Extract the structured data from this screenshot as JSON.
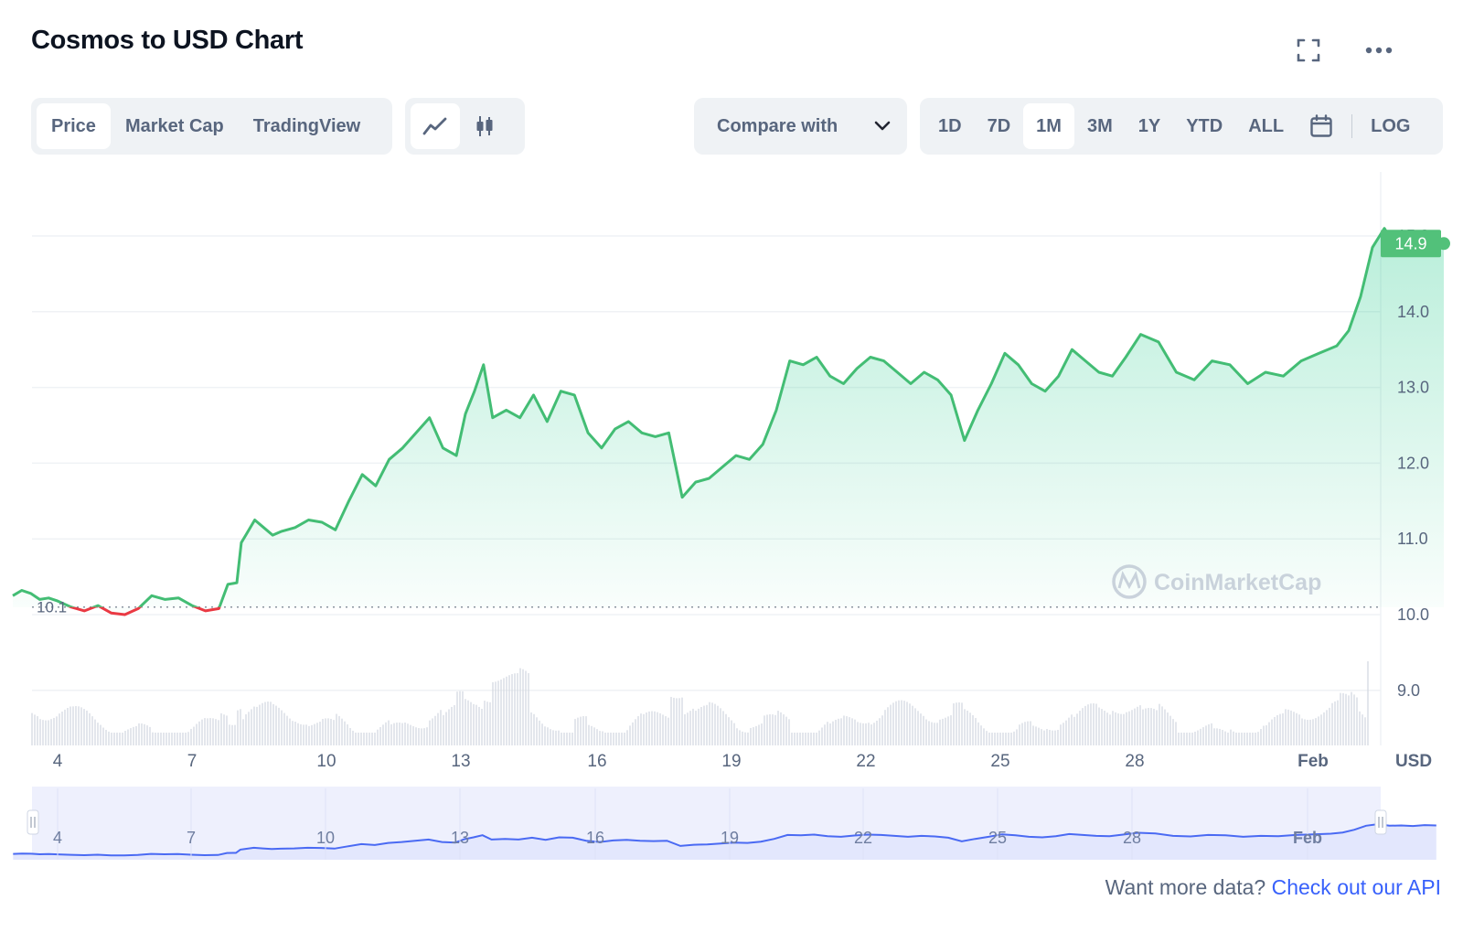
{
  "title": "Cosmos to USD Chart",
  "icons": {
    "fullscreen": "fullscreen-icon",
    "more": "more-horizontal-icon",
    "line": "line-chart-icon",
    "candle": "candlestick-icon",
    "chevron": "chevron-down-icon",
    "calendar": "calendar-icon",
    "watermark": "coinmarketcap-logo-icon"
  },
  "view_tabs": [
    {
      "label": "Price",
      "active": true
    },
    {
      "label": "Market Cap",
      "active": false
    },
    {
      "label": "TradingView",
      "active": false
    }
  ],
  "compare_label": "Compare with",
  "ranges": [
    {
      "label": "1D"
    },
    {
      "label": "7D"
    },
    {
      "label": "1M",
      "active": true
    },
    {
      "label": "3M"
    },
    {
      "label": "1Y"
    },
    {
      "label": "YTD"
    },
    {
      "label": "ALL"
    }
  ],
  "log_label": "LOG",
  "watermark_text": "CoinMarketCap",
  "footer": {
    "prefix": "Want more data?",
    "link": "Check out our API"
  },
  "colors": {
    "up": "#16c784",
    "up_line": "#43bd74",
    "down": "#ea3943",
    "accent": "#3861fb",
    "navigator_fill": "#e3e7fd",
    "navigator_line": "#4a6af3",
    "badge": "#52c17a"
  },
  "chart_data": {
    "type": "line",
    "currency_label": "USD",
    "ylim": [
      8.4,
      15.9
    ],
    "y_ticks": [
      "9.0",
      "10.0",
      "11.0",
      "12.0",
      "13.0",
      "14.0",
      "15.0"
    ],
    "x_ticks": [
      "4",
      "7",
      "10",
      "13",
      "16",
      "19",
      "22",
      "25",
      "28",
      "Feb"
    ],
    "open_value": "10.1",
    "last_value": "14.9",
    "navigator_ticks": [
      "4",
      "7",
      "10",
      "13",
      "16",
      "19",
      "22",
      "25",
      "28",
      "Feb"
    ],
    "series": [
      {
        "x": [
          3.0,
          3.2,
          3.4,
          3.6,
          3.8,
          4.0,
          4.3,
          4.6,
          4.9,
          5.2,
          5.5,
          5.8,
          6.1,
          6.4,
          6.7,
          7.0,
          7.3,
          7.6,
          7.8,
          8.0,
          8.1,
          8.2,
          8.4,
          8.6,
          8.8,
          9.0,
          9.3,
          9.6,
          9.9,
          10.2,
          10.5,
          10.8,
          11.1,
          11.4,
          11.7,
          12.0,
          12.3,
          12.6,
          12.9,
          13.1,
          13.3,
          13.5,
          13.7,
          14.0,
          14.3,
          14.6,
          14.9,
          15.2,
          15.5,
          15.8,
          16.1,
          16.4,
          16.7,
          17.0,
          17.3,
          17.6,
          17.9,
          18.2,
          18.5,
          18.8,
          19.1,
          19.4,
          19.7,
          20.0,
          20.3,
          20.6,
          20.9,
          21.2,
          21.5,
          21.8,
          22.1,
          22.4,
          22.7,
          23.0,
          23.3,
          23.6,
          23.9,
          24.2,
          24.5,
          24.8,
          25.1,
          25.4,
          25.7,
          26.0,
          26.3,
          26.6,
          26.9,
          27.2,
          27.5,
          27.8,
          28.1,
          28.4,
          28.7,
          29.0,
          29.3,
          29.6,
          29.9,
          30.2,
          30.5,
          30.8,
          31.1,
          31.4,
          31.6,
          31.8,
          32.0,
          32.2,
          32.4,
          32.6,
          32.8,
          33.0,
          33.2
        ],
        "values": [
          10.25,
          10.32,
          10.28,
          10.2,
          10.22,
          10.18,
          10.1,
          10.05,
          10.12,
          10.02,
          10.0,
          10.08,
          10.25,
          10.2,
          10.22,
          10.12,
          10.05,
          10.08,
          10.4,
          10.42,
          10.95,
          11.05,
          11.25,
          11.15,
          11.05,
          11.1,
          11.15,
          11.25,
          11.22,
          11.12,
          11.5,
          11.85,
          11.7,
          12.05,
          12.2,
          12.4,
          12.6,
          12.2,
          12.1,
          12.65,
          12.95,
          13.3,
          12.6,
          12.7,
          12.6,
          12.9,
          12.55,
          12.95,
          12.9,
          12.4,
          12.2,
          12.45,
          12.55,
          12.4,
          12.35,
          12.4,
          11.55,
          11.75,
          11.8,
          11.95,
          12.1,
          12.05,
          12.25,
          12.7,
          13.35,
          13.3,
          13.4,
          13.15,
          13.05,
          13.25,
          13.4,
          13.35,
          13.2,
          13.05,
          13.2,
          13.1,
          12.9,
          12.3,
          12.7,
          13.05,
          13.45,
          13.3,
          13.05,
          12.95,
          13.15,
          13.5,
          13.35,
          13.2,
          13.15,
          13.4,
          13.7,
          13.6,
          13.2,
          13.1,
          13.35,
          13.3,
          13.05,
          13.2,
          13.15,
          13.35,
          13.45,
          13.55,
          13.75,
          14.2,
          14.85,
          15.1,
          14.85,
          14.9,
          14.8,
          14.95,
          14.9
        ]
      }
    ],
    "grid": true,
    "legend": "none"
  }
}
